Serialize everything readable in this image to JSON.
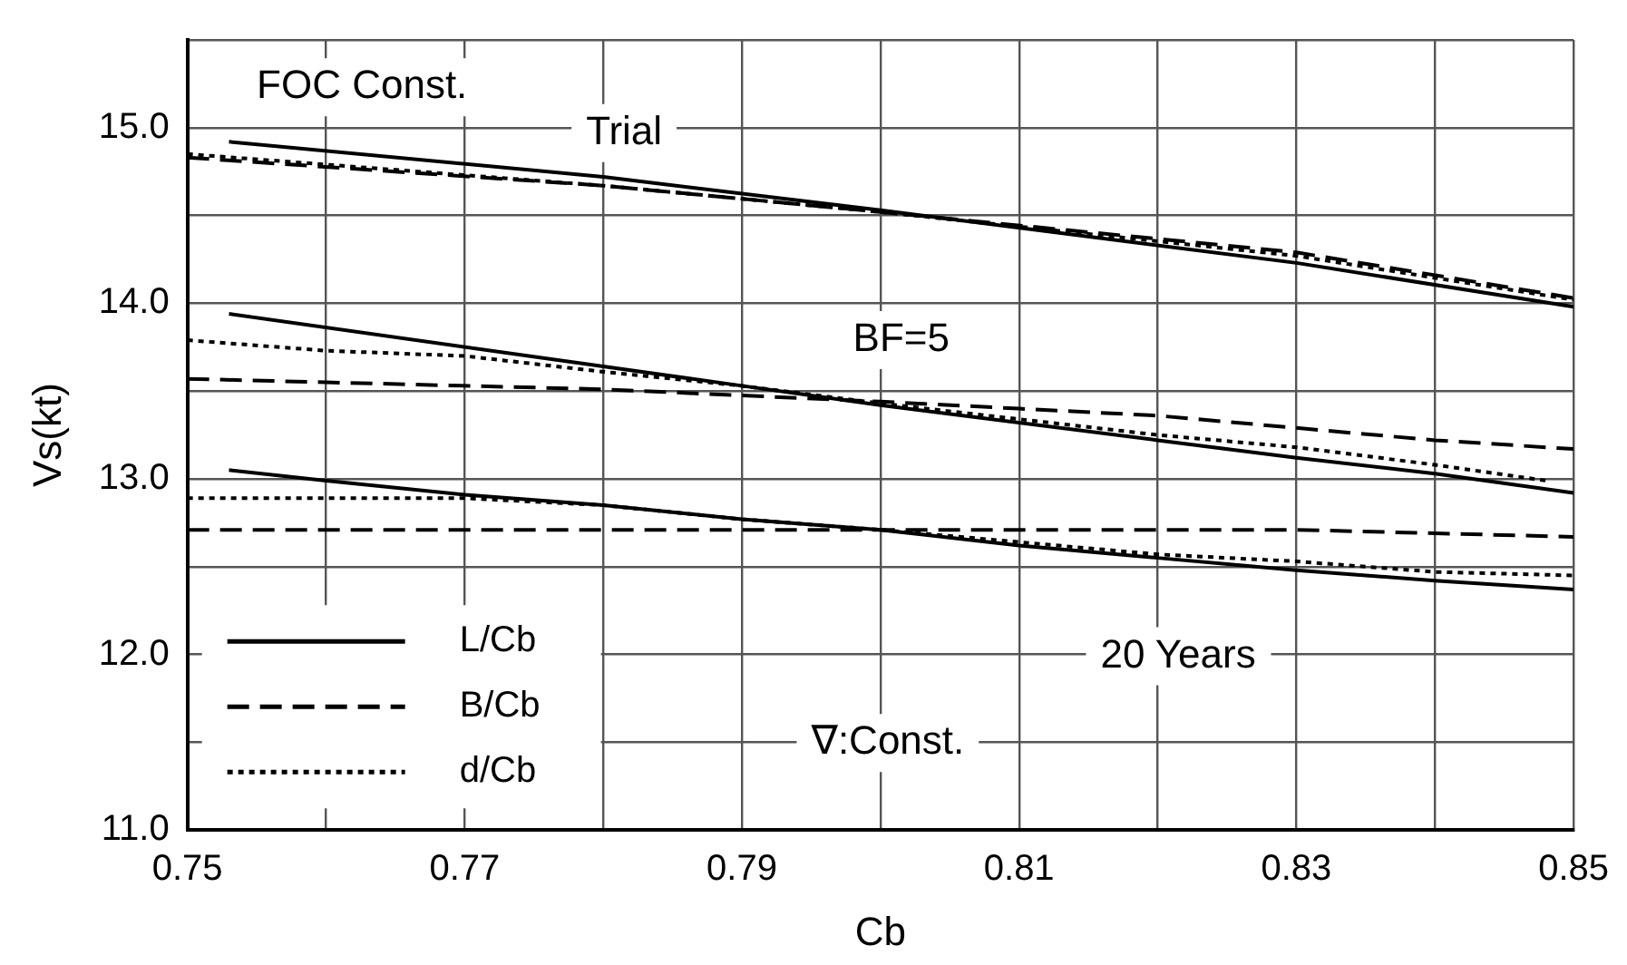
{
  "chart_data": {
    "type": "line",
    "xlabel": "Cb",
    "ylabel": "Vs(kt)",
    "xlim": [
      0.75,
      0.85
    ],
    "ylim": [
      11.0,
      15.5
    ],
    "xticks": [
      0.75,
      {
        "value": 0.76,
        "label": null
      },
      0.77,
      {
        "value": 0.78,
        "label": null
      },
      0.79,
      {
        "value": 0.8,
        "label": null
      },
      0.81,
      {
        "value": 0.82,
        "label": null
      },
      0.83,
      {
        "value": 0.84,
        "label": null
      },
      0.85
    ],
    "yticks": [
      {
        "value": 11,
        "label": "11.0"
      },
      {
        "value": 11.5,
        "label": null
      },
      {
        "value": 12,
        "label": "12.0"
      },
      {
        "value": 12.5,
        "label": null
      },
      {
        "value": 13,
        "label": "13.0"
      },
      {
        "value": 13.5,
        "label": null
      },
      {
        "value": 14,
        "label": "14.0"
      },
      {
        "value": 14.5,
        "label": null
      },
      {
        "value": 15,
        "label": "15.0"
      },
      {
        "value": 15.5,
        "label": null
      }
    ],
    "grid": true,
    "legend": "bottom left",
    "marker": "none",
    "series": [
      {
        "name": "L/Cb",
        "color": "#000000",
        "line_style": "solid",
        "x": [
          0.753,
          0.78,
          0.8,
          0.83,
          0.85
        ],
        "values": [
          14.92,
          14.72,
          14.53,
          14.23,
          13.98
        ]
      },
      {
        "name": "B/Cb",
        "color": "#000000",
        "line_style": "dashed",
        "x": [
          0.75,
          0.78,
          0.8,
          0.83,
          0.85
        ],
        "values": [
          14.83,
          14.67,
          14.52,
          14.29,
          14.03
        ]
      },
      {
        "name": "d/Cb",
        "color": "#000000",
        "line_style": "dotted",
        "x": [
          0.75,
          0.78,
          0.8,
          0.83,
          0.85
        ],
        "values": [
          14.85,
          14.67,
          14.52,
          14.27,
          14.02
        ]
      },
      {
        "color": "#000000",
        "line_style": "solid",
        "x": [
          0.753,
          0.78,
          0.79,
          0.8,
          0.82,
          0.83,
          0.84,
          0.85
        ],
        "values": [
          13.94,
          13.64,
          13.53,
          13.42,
          13.22,
          13.12,
          13.03,
          12.92
        ]
      },
      {
        "color": "#000000",
        "line_style": "dashed",
        "x": [
          0.75,
          0.76,
          0.78,
          0.8,
          0.81,
          0.82,
          0.83,
          0.84,
          0.85
        ],
        "values": [
          13.57,
          13.55,
          13.51,
          13.44,
          13.4,
          13.36,
          13.29,
          13.22,
          13.17
        ]
      },
      {
        "color": "#000000",
        "line_style": "dotted",
        "x": [
          0.75,
          0.76,
          0.77,
          0.78,
          0.79,
          0.8,
          0.82,
          0.83,
          0.84,
          0.848
        ],
        "values": [
          13.79,
          13.73,
          13.7,
          13.61,
          13.53,
          13.43,
          13.25,
          13.18,
          13.08,
          12.99
        ]
      },
      {
        "color": "#000000",
        "line_style": "solid",
        "x": [
          0.753,
          0.76,
          0.77,
          0.78,
          0.79,
          0.8,
          0.81,
          0.82,
          0.83,
          0.84,
          0.85
        ],
        "values": [
          13.05,
          12.99,
          12.91,
          12.85,
          12.77,
          12.71,
          12.62,
          12.55,
          12.48,
          12.42,
          12.37
        ]
      },
      {
        "color": "#000000",
        "line_style": "dashed",
        "x": [
          0.75,
          0.8,
          0.81,
          0.82,
          0.83,
          0.84,
          0.85
        ],
        "values": [
          12.71,
          12.71,
          12.71,
          12.71,
          12.71,
          12.69,
          12.67
        ]
      },
      {
        "color": "#000000",
        "line_style": "dotted",
        "x": [
          0.75,
          0.76,
          0.77,
          0.78,
          0.79,
          0.8,
          0.82,
          0.83,
          0.84,
          0.85
        ],
        "values": [
          12.89,
          12.89,
          12.89,
          12.85,
          12.77,
          12.71,
          12.57,
          12.53,
          12.47,
          12.45
        ]
      }
    ],
    "annotations": [
      "FOC Const.",
      "Trial",
      "BF=5",
      "20 Years",
      "∇:Const."
    ]
  }
}
